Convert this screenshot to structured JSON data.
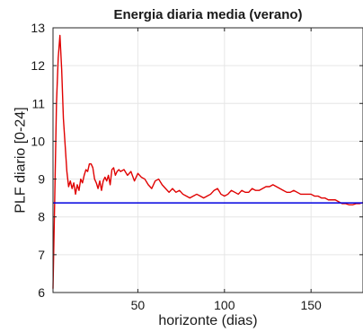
{
  "chart_data": {
    "type": "line",
    "title": "Energia diaria media (verano)",
    "xlabel": "horizonte (dias)",
    "ylabel": "PLF diario [0-24]",
    "xlim": [
      1,
      180
    ],
    "ylim": [
      6,
      13
    ],
    "xticks": [
      50,
      100,
      150
    ],
    "yticks": [
      6,
      7,
      8,
      9,
      10,
      11,
      12,
      13
    ],
    "grid": true,
    "series": [
      {
        "color": "#e00000",
        "x": [
          1,
          2,
          3,
          4,
          5,
          6,
          7,
          8,
          9,
          10,
          11,
          12,
          13,
          14,
          15,
          16,
          17,
          18,
          19,
          20,
          21,
          22,
          23,
          24,
          25,
          26,
          27,
          28,
          29,
          30,
          31,
          32,
          33,
          34,
          35,
          36,
          37,
          38,
          39,
          40,
          42,
          44,
          46,
          48,
          50,
          52,
          54,
          56,
          58,
          60,
          62,
          64,
          66,
          68,
          70,
          72,
          74,
          76,
          78,
          80,
          82,
          84,
          86,
          88,
          90,
          92,
          94,
          96,
          98,
          100,
          102,
          104,
          106,
          108,
          110,
          112,
          114,
          116,
          118,
          120,
          122,
          124,
          126,
          128,
          130,
          132,
          134,
          136,
          138,
          140,
          142,
          144,
          146,
          148,
          150,
          152,
          154,
          156,
          158,
          160,
          162,
          164,
          166,
          168,
          170,
          172,
          174,
          176,
          178,
          180
        ],
        "y": [
          6.1,
          8.5,
          11.0,
          12.2,
          12.8,
          11.9,
          10.6,
          9.9,
          9.2,
          8.8,
          8.95,
          8.75,
          8.9,
          8.6,
          8.85,
          8.7,
          9.0,
          8.9,
          9.1,
          9.25,
          9.2,
          9.4,
          9.4,
          9.3,
          9.0,
          8.9,
          8.75,
          8.95,
          8.7,
          8.95,
          9.05,
          8.95,
          9.1,
          8.85,
          9.25,
          9.3,
          9.1,
          9.2,
          9.25,
          9.2,
          9.25,
          9.1,
          9.2,
          8.95,
          9.15,
          9.05,
          9.0,
          8.85,
          8.75,
          8.95,
          9.0,
          8.85,
          8.75,
          8.65,
          8.75,
          8.65,
          8.7,
          8.6,
          8.55,
          8.5,
          8.55,
          8.6,
          8.55,
          8.5,
          8.55,
          8.6,
          8.7,
          8.75,
          8.6,
          8.55,
          8.6,
          8.7,
          8.65,
          8.6,
          8.7,
          8.65,
          8.65,
          8.75,
          8.7,
          8.7,
          8.75,
          8.8,
          8.8,
          8.85,
          8.8,
          8.75,
          8.7,
          8.65,
          8.65,
          8.7,
          8.65,
          8.6,
          8.6,
          8.6,
          8.6,
          8.55,
          8.55,
          8.5,
          8.5,
          8.45,
          8.45,
          8.45,
          8.4,
          8.35,
          8.35,
          8.32,
          8.32,
          8.35,
          8.35,
          8.38
        ]
      },
      {
        "color": "#0000e0",
        "x": [
          1,
          180
        ],
        "y": [
          8.37,
          8.37
        ]
      }
    ]
  }
}
